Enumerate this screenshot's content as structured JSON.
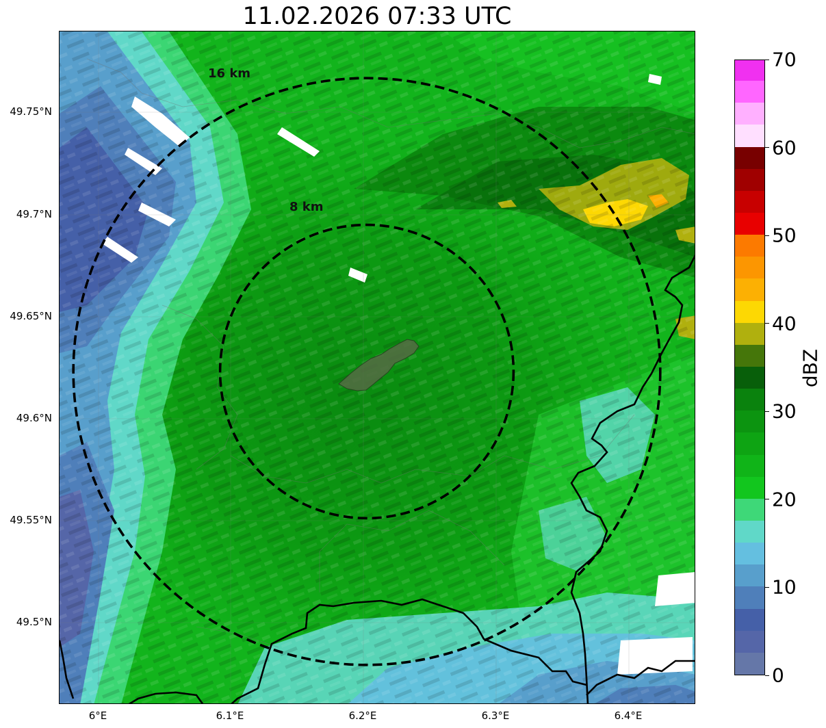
{
  "title": "11.02.2026 07:33 UTC",
  "lat_labels": [
    "49.75°N",
    "49.7°N",
    "49.65°N",
    "49.6°N",
    "49.55°N",
    "49.5°N"
  ],
  "lon_labels": [
    "6°E",
    "6.1°E",
    "6.2°E",
    "6.3°E",
    "6.4°E"
  ],
  "rings": [
    {
      "label": "16 km",
      "radius_km": 16
    },
    {
      "label": "8 km",
      "radius_km": 8
    }
  ],
  "colorbar": {
    "unit": "dBZ",
    "min": 0,
    "max": 70,
    "step": 2.5,
    "tick_labels": [
      "0",
      "10",
      "20",
      "30",
      "40",
      "50",
      "60",
      "70"
    ],
    "colors": [
      "#6577a8",
      "#5566a8",
      "#4560a8",
      "#4f7fba",
      "#589fcc",
      "#64bfe0",
      "#60d8c8",
      "#3ed878",
      "#12c61e",
      "#10b418",
      "#0ea413",
      "#0c9410",
      "#0a820d",
      "#085f0a",
      "#45760a",
      "#b0b00e",
      "#fdd803",
      "#fcb003",
      "#fc9601",
      "#fc7a00",
      "#e80000",
      "#c80000",
      "#a00000",
      "#780000",
      "#ffdfff",
      "#ffb0ff",
      "#ff66ff",
      "#f030f0"
    ]
  },
  "radar_center": {
    "lon": 6.203,
    "lat": 49.623
  }
}
